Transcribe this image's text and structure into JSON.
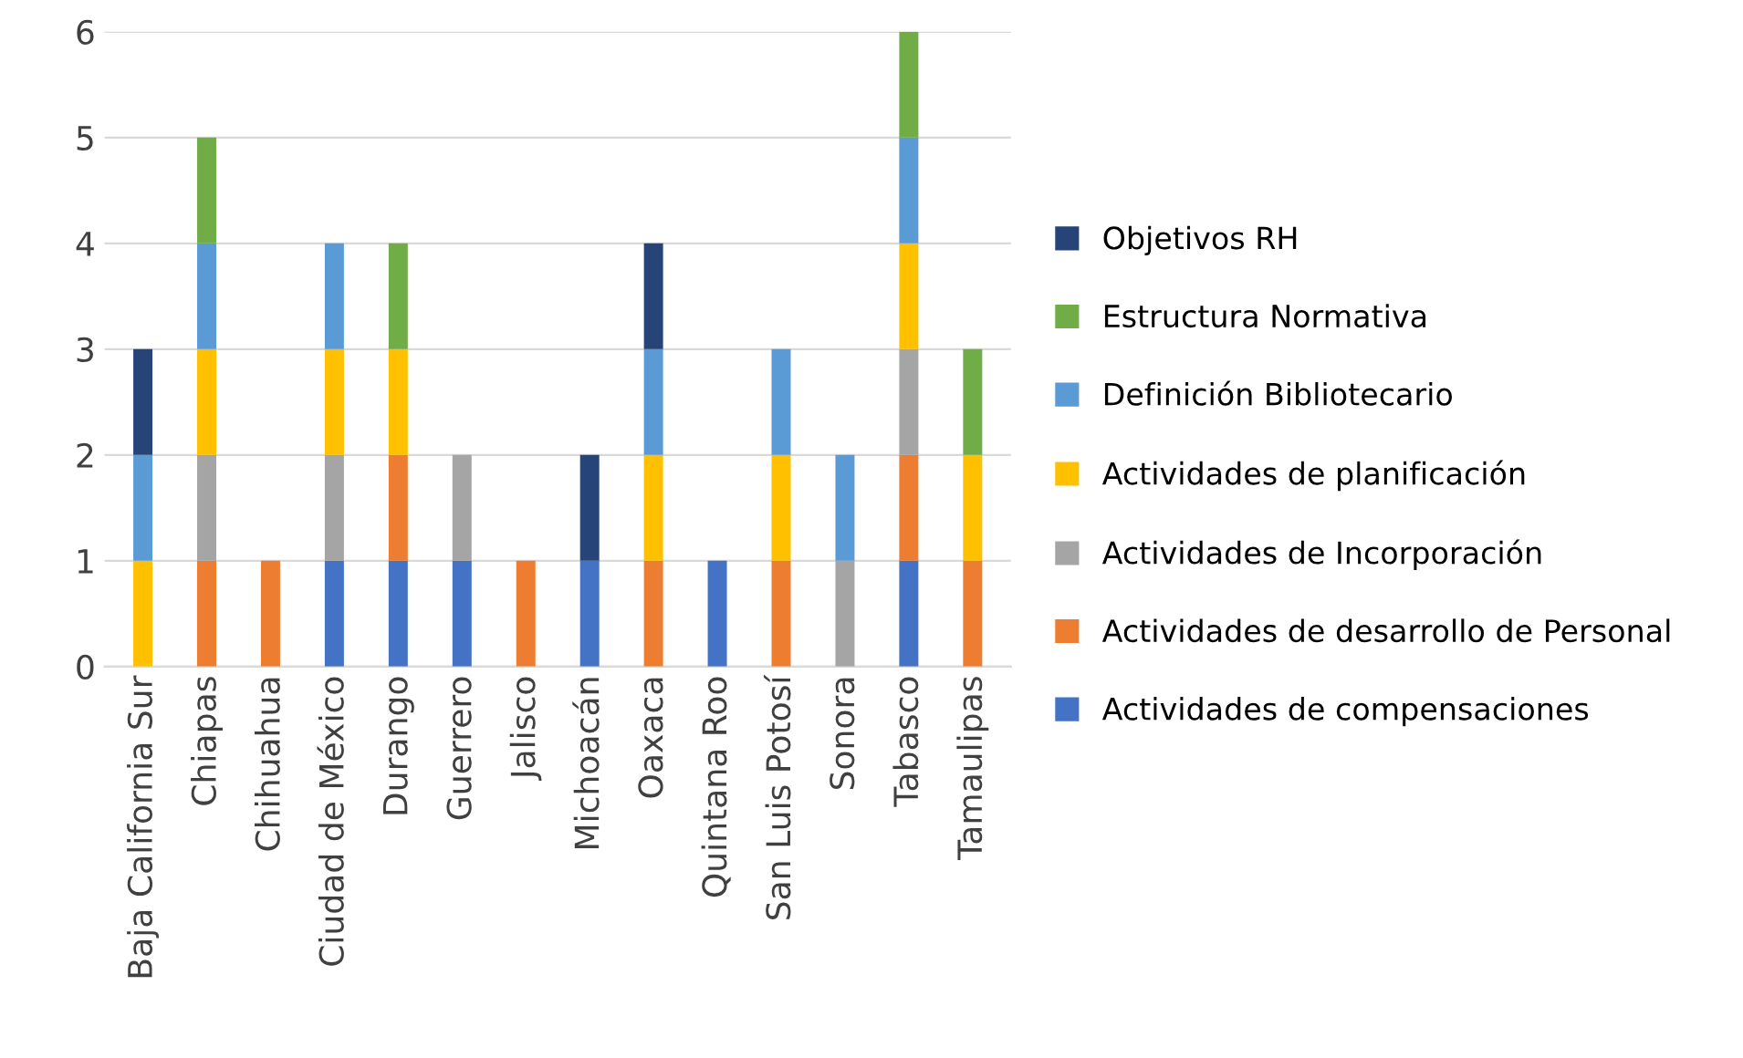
{
  "chart_data": {
    "type": "bar",
    "stacked": true,
    "categories": [
      "Baja California Sur",
      "Chiapas",
      "Chihuahua",
      "Ciudad de México",
      "Durango",
      "Guerrero",
      "Jalisco",
      "Michoacán",
      "Oaxaca",
      "Quintana Roo",
      "San Luis Potosí",
      "Sonora",
      "Tabasco",
      "Tamaulipas"
    ],
    "series": [
      {
        "name": "Actividades de compensaciones",
        "color": "#4472c4",
        "values": [
          0,
          0,
          0,
          1,
          1,
          1,
          0,
          1,
          0,
          1,
          0,
          0,
          1,
          0
        ]
      },
      {
        "name": "Actividades de desarrollo de Personal",
        "color": "#ed7d31",
        "values": [
          0,
          1,
          1,
          0,
          1,
          0,
          1,
          0,
          1,
          0,
          1,
          0,
          1,
          1
        ]
      },
      {
        "name": "Actividades de Incorporación",
        "color": "#a5a5a5",
        "values": [
          0,
          1,
          0,
          1,
          0,
          1,
          0,
          0,
          0,
          0,
          0,
          1,
          1,
          0
        ]
      },
      {
        "name": "Actividades de planificación",
        "color": "#ffc000",
        "values": [
          1,
          1,
          0,
          1,
          1,
          0,
          0,
          0,
          1,
          0,
          1,
          0,
          1,
          1
        ]
      },
      {
        "name": "Definición Bibliotecario",
        "color": "#5b9bd5",
        "values": [
          1,
          1,
          0,
          1,
          0,
          0,
          0,
          0,
          1,
          0,
          1,
          1,
          1,
          0
        ]
      },
      {
        "name": "Estructura Normativa",
        "color": "#70ad47",
        "values": [
          0,
          1,
          0,
          0,
          1,
          0,
          0,
          0,
          0,
          0,
          0,
          0,
          1,
          1
        ]
      },
      {
        "name": "Objetivos RH",
        "color": "#264478",
        "values": [
          1,
          0,
          0,
          0,
          0,
          0,
          0,
          1,
          1,
          0,
          0,
          0,
          0,
          0
        ]
      }
    ],
    "ylim": [
      0,
      6
    ],
    "yticks": [
      0,
      1,
      2,
      3,
      4,
      5,
      6
    ],
    "grid": "y",
    "legend": "right"
  }
}
